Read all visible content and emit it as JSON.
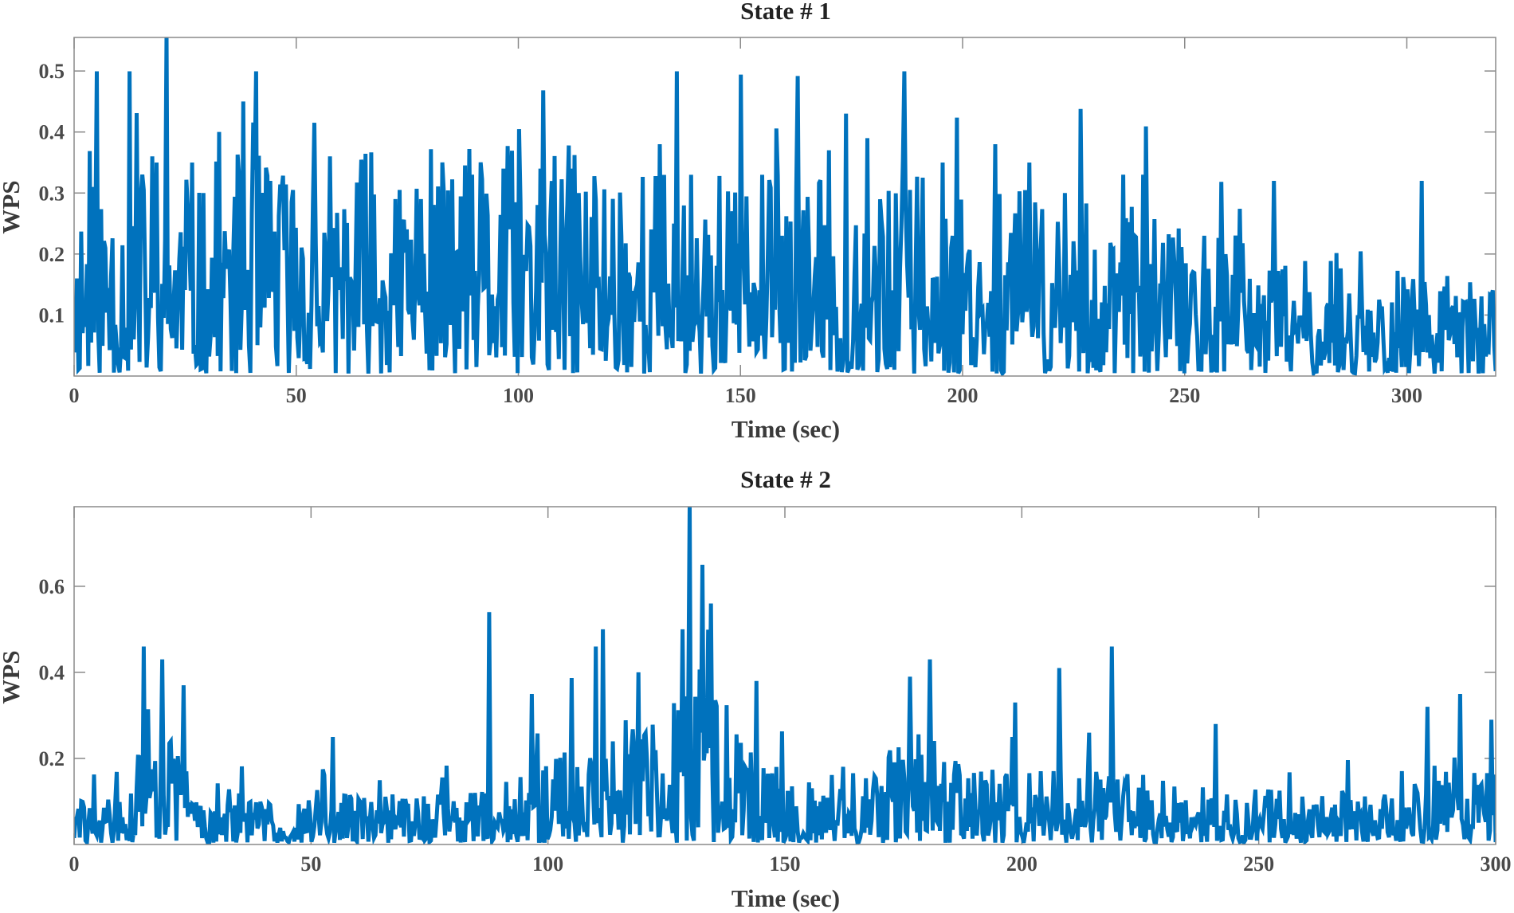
{
  "chart_data": [
    {
      "type": "line",
      "title": "State # 1",
      "xlabel": "Time (sec)",
      "ylabel": "WPS",
      "xlim": [
        0,
        320
      ],
      "ylim": [
        0,
        0.555
      ],
      "xticks": [
        0,
        50,
        100,
        150,
        200,
        250,
        300
      ],
      "yticks": [
        0.1,
        0.2,
        0.3,
        0.4,
        0.5
      ],
      "xtick_labels": [
        "0",
        "50",
        "100",
        "150",
        "200",
        "250",
        "300"
      ],
      "ytick_labels": [
        "0.1",
        "0.2",
        "0.3",
        "0.4",
        "0.5"
      ],
      "grid": false,
      "series": [
        {
          "name": "WPS",
          "color": "#0072BD",
          "dt": 0.32,
          "peaks": [
            [
              0.6,
              0.16
            ],
            [
              4.2,
              0.31
            ],
            [
              17.5,
              0.36
            ],
            [
              18.5,
              0.35
            ],
            [
              20.8,
              0.56
            ],
            [
              26.5,
              0.35
            ],
            [
              29.0,
              0.3
            ],
            [
              32.5,
              0.4
            ],
            [
              38.0,
              0.45
            ],
            [
              44.0,
              0.32
            ],
            [
              57.5,
              0.36
            ],
            [
              72.2,
              0.29
            ],
            [
              78.0,
              0.29
            ],
            [
              89.5,
              0.33
            ],
            [
              96.5,
              0.34
            ],
            [
              105.0,
              0.34
            ],
            [
              112.0,
              0.34
            ],
            [
              131.8,
              0.38
            ],
            [
              135.0,
              0.25
            ],
            [
              148.0,
              0.27
            ],
            [
              159.5,
              0.23
            ],
            [
              170.0,
              0.37
            ],
            [
              173.8,
              0.43
            ],
            [
              178.5,
              0.39
            ],
            [
              195.5,
              0.35
            ],
            [
              207.5,
              0.38
            ],
            [
              215.0,
              0.35
            ],
            [
              223.0,
              0.3
            ],
            [
              236.0,
              0.33
            ],
            [
              240.5,
              0.33
            ],
            [
              270.0,
              0.32
            ],
            [
              303.5,
              0.32
            ]
          ],
          "envelope": [
            [
              0,
              0.2
            ],
            [
              60,
              0.22
            ],
            [
              120,
              0.22
            ],
            [
              160,
              0.19
            ],
            [
              200,
              0.19
            ],
            [
              240,
              0.16
            ],
            [
              280,
              0.11
            ],
            [
              320,
              0.09
            ]
          ]
        }
      ]
    },
    {
      "type": "line",
      "title": "State # 2",
      "xlabel": "Time (sec)",
      "ylabel": "WPS",
      "xlim": [
        0,
        300
      ],
      "ylim": [
        0,
        0.785
      ],
      "xticks": [
        0,
        50,
        100,
        150,
        200,
        250,
        300
      ],
      "yticks": [
        0.2,
        0.4,
        0.6
      ],
      "xtick_labels": [
        "0",
        "50",
        "100",
        "150",
        "200",
        "250",
        "300"
      ],
      "ytick_labels": [
        "0.2",
        "0.4",
        "0.6"
      ],
      "grid": false,
      "series": [
        {
          "name": "WPS",
          "color": "#0072BD",
          "dt": 0.3,
          "peaks": [
            [
              14.8,
              0.46
            ],
            [
              18.5,
              0.43
            ],
            [
              23.0,
              0.37
            ],
            [
              54.5,
              0.25
            ],
            [
              87.7,
              0.54
            ],
            [
              96.5,
              0.35
            ],
            [
              110.0,
              0.46
            ],
            [
              111.5,
              0.5
            ],
            [
              119.0,
              0.4
            ],
            [
              128.3,
              0.5
            ],
            [
              129.5,
              0.67
            ],
            [
              130.0,
              0.79
            ],
            [
              132.5,
              0.65
            ],
            [
              134.5,
              0.56
            ],
            [
              144.0,
              0.38
            ],
            [
              176.5,
              0.39
            ],
            [
              180.5,
              0.43
            ],
            [
              198.5,
              0.33
            ],
            [
              208.0,
              0.41
            ],
            [
              219.0,
              0.46
            ],
            [
              241.0,
              0.28
            ],
            [
              285.5,
              0.32
            ],
            [
              292.5,
              0.35
            ],
            [
              299.2,
              0.29
            ]
          ],
          "envelope": [
            [
              0,
              0.06
            ],
            [
              12,
              0.07
            ],
            [
              16,
              0.22
            ],
            [
              24,
              0.1
            ],
            [
              40,
              0.06
            ],
            [
              60,
              0.07
            ],
            [
              90,
              0.08
            ],
            [
              100,
              0.12
            ],
            [
              112,
              0.18
            ],
            [
              124,
              0.16
            ],
            [
              131,
              0.4
            ],
            [
              138,
              0.2
            ],
            [
              150,
              0.1
            ],
            [
              170,
              0.11
            ],
            [
              180,
              0.19
            ],
            [
              190,
              0.1
            ],
            [
              220,
              0.1
            ],
            [
              240,
              0.08
            ],
            [
              260,
              0.07
            ],
            [
              280,
              0.08
            ],
            [
              290,
              0.12
            ],
            [
              300,
              0.1
            ]
          ]
        }
      ]
    }
  ]
}
